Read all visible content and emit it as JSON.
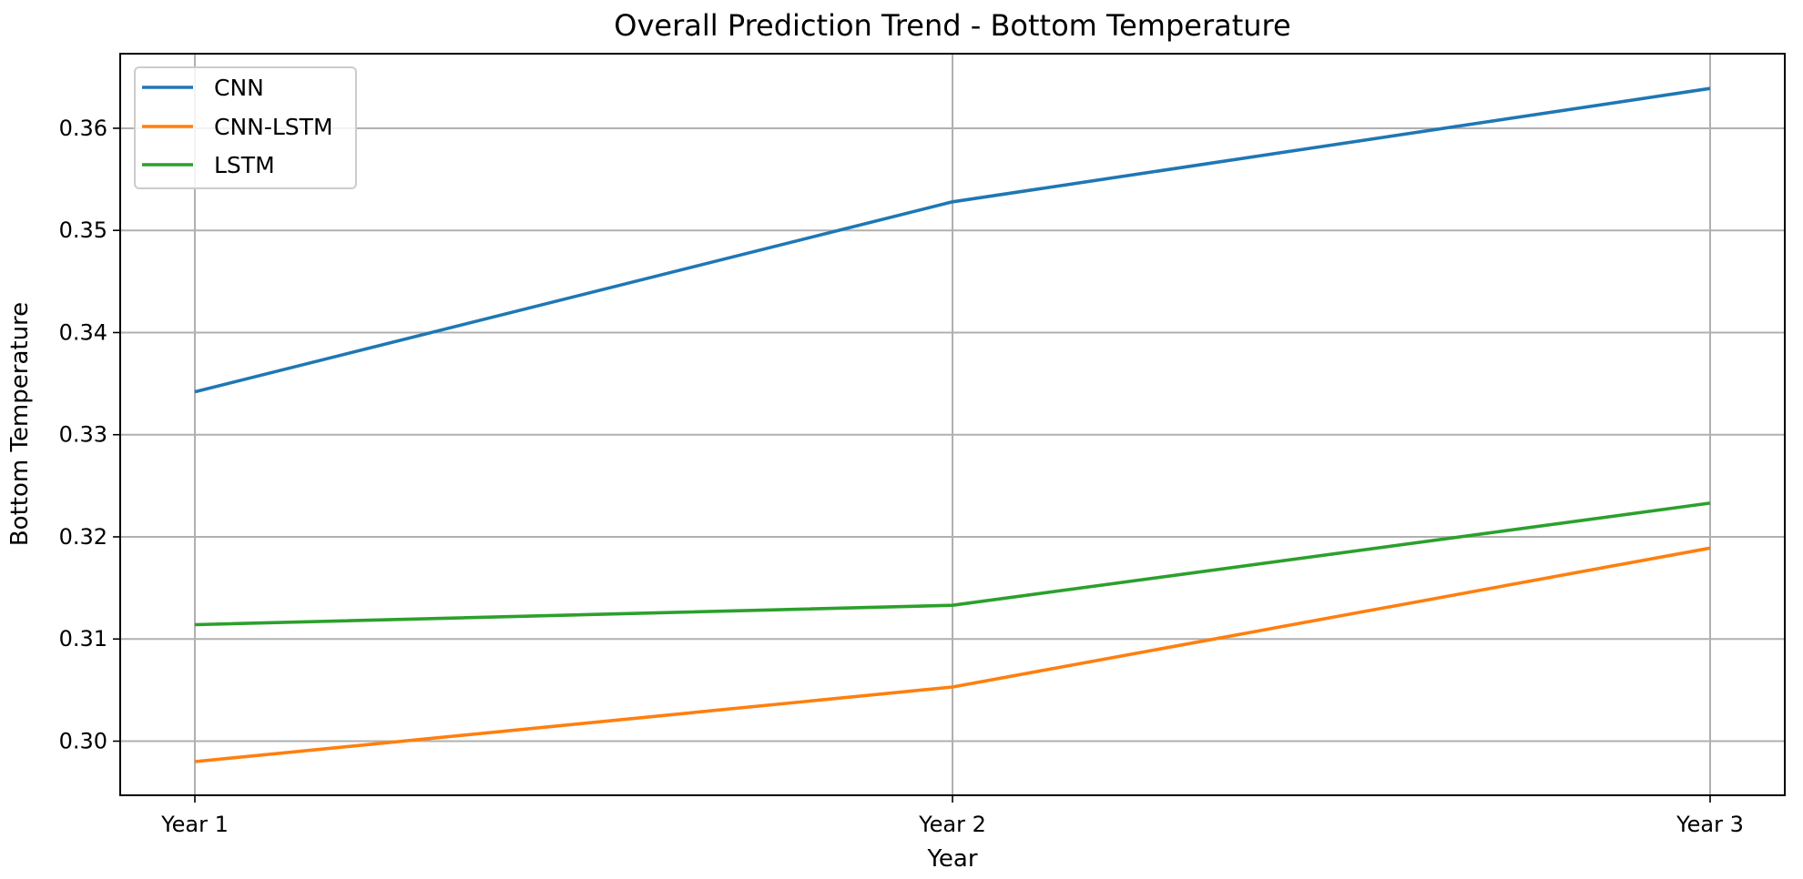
{
  "chart_data": {
    "type": "line",
    "title": "Overall Prediction Trend - Bottom Temperature",
    "xlabel": "Year",
    "ylabel": "Bottom Temperature",
    "categories": [
      "Year 1",
      "Year 2",
      "Year 3"
    ],
    "ylim": [
      0.2947,
      0.3673
    ],
    "yticks": [
      0.3,
      0.31,
      0.32,
      0.33,
      0.34,
      0.35,
      0.36
    ],
    "ytick_labels": [
      "0.30",
      "0.31",
      "0.32",
      "0.33",
      "0.34",
      "0.35",
      "0.36"
    ],
    "grid": true,
    "legend_position": "top-left",
    "series": [
      {
        "name": "CNN",
        "color": "#1f77b4",
        "values": [
          0.3342,
          0.3528,
          0.3639
        ]
      },
      {
        "name": "CNN-LSTM",
        "color": "#ff7f0e",
        "values": [
          0.298,
          0.3053,
          0.3189
        ]
      },
      {
        "name": "LSTM",
        "color": "#2ca02c",
        "values": [
          0.3114,
          0.3133,
          0.3233
        ]
      }
    ]
  }
}
